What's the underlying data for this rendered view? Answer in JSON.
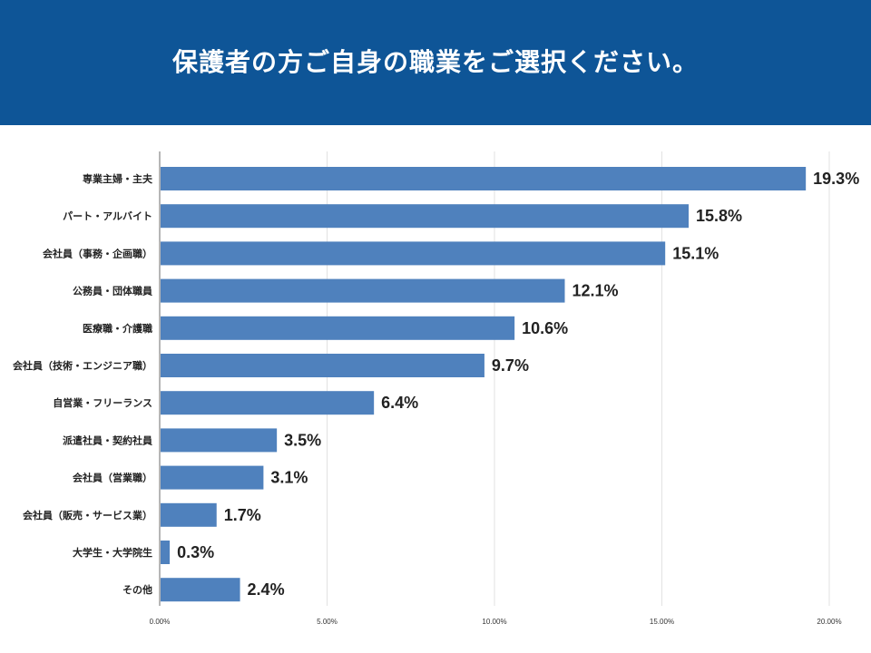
{
  "header": {
    "title": "保護者の方ご自身の職業をご選択ください。"
  },
  "colors": {
    "header_bg": "#0e5597",
    "bar": "#4f81bd",
    "grid": "#e2e2e2",
    "axis": "#9e9e9e"
  },
  "chart_data": {
    "type": "bar",
    "orientation": "horizontal",
    "title": "保護者の方ご自身の職業をご選択ください。",
    "categories": [
      "専業主婦・主夫",
      "パート・アルバイト",
      "会社員（事務・企画職）",
      "公務員・団体職員",
      "医療職・介護職",
      "会社員（技術・エンジニア職）",
      "自営業・フリーランス",
      "派遣社員・契約社員",
      "会社員（営業職）",
      "会社員（販売・サービス業）",
      "大学生・大学院生",
      "その他"
    ],
    "values": [
      19.3,
      15.8,
      15.1,
      12.1,
      10.6,
      9.7,
      6.4,
      3.5,
      3.1,
      1.7,
      0.3,
      2.4
    ],
    "value_labels": [
      "19.3%",
      "15.8%",
      "15.1%",
      "12.1%",
      "10.6%",
      "9.7%",
      "6.4%",
      "3.5%",
      "3.1%",
      "1.7%",
      "0.3%",
      "2.4%"
    ],
    "xlim": [
      0,
      20
    ],
    "x_ticks": [
      0,
      5,
      10,
      15,
      20
    ],
    "x_tick_labels": [
      "0.00%",
      "5.00%",
      "10.00%",
      "15.00%",
      "20.00%"
    ],
    "grid": true,
    "legend": "none"
  }
}
